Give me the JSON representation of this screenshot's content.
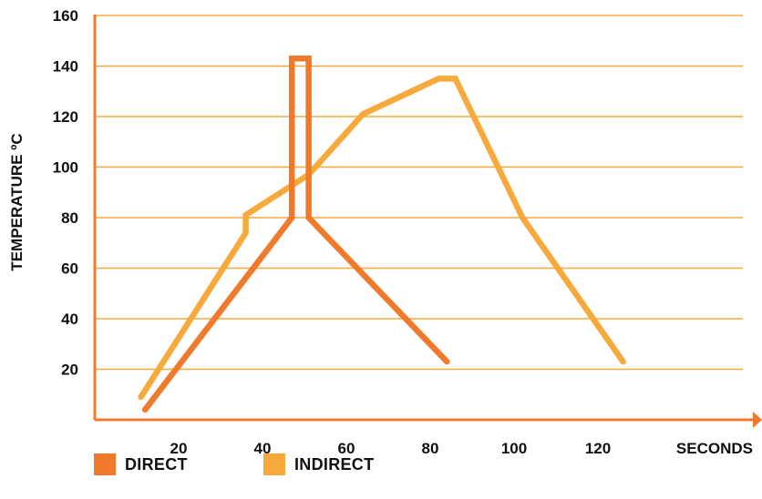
{
  "chart_data": {
    "type": "line",
    "xlabel": "SECONDS",
    "ylabel": "TEMPERATURE ºC",
    "x_ticks": [
      "20",
      "40",
      "60",
      "80",
      "100",
      "120"
    ],
    "y_ticks": [
      "20",
      "40",
      "60",
      "80",
      "100",
      "120",
      "140",
      "160"
    ],
    "xlim": [
      0,
      160
    ],
    "ylim": [
      0,
      160
    ],
    "grid": "horizontal",
    "legend_position": "bottom-left",
    "series": [
      {
        "name": "DIRECT",
        "color": "#F07A2C",
        "points": [
          [
            12,
            4
          ],
          [
            47,
            80
          ],
          [
            47,
            143
          ],
          [
            51,
            143
          ],
          [
            51,
            80
          ],
          [
            84,
            23
          ]
        ]
      },
      {
        "name": "INDIRECT",
        "color": "#F8A93B",
        "points": [
          [
            11,
            9
          ],
          [
            36,
            74
          ],
          [
            36,
            81
          ],
          [
            51,
            97
          ],
          [
            64,
            121
          ],
          [
            82,
            135
          ],
          [
            86,
            135
          ],
          [
            102,
            80
          ],
          [
            126,
            23
          ]
        ]
      }
    ],
    "axis_color": "#F07A2C",
    "grid_color": "#F8A93B"
  }
}
